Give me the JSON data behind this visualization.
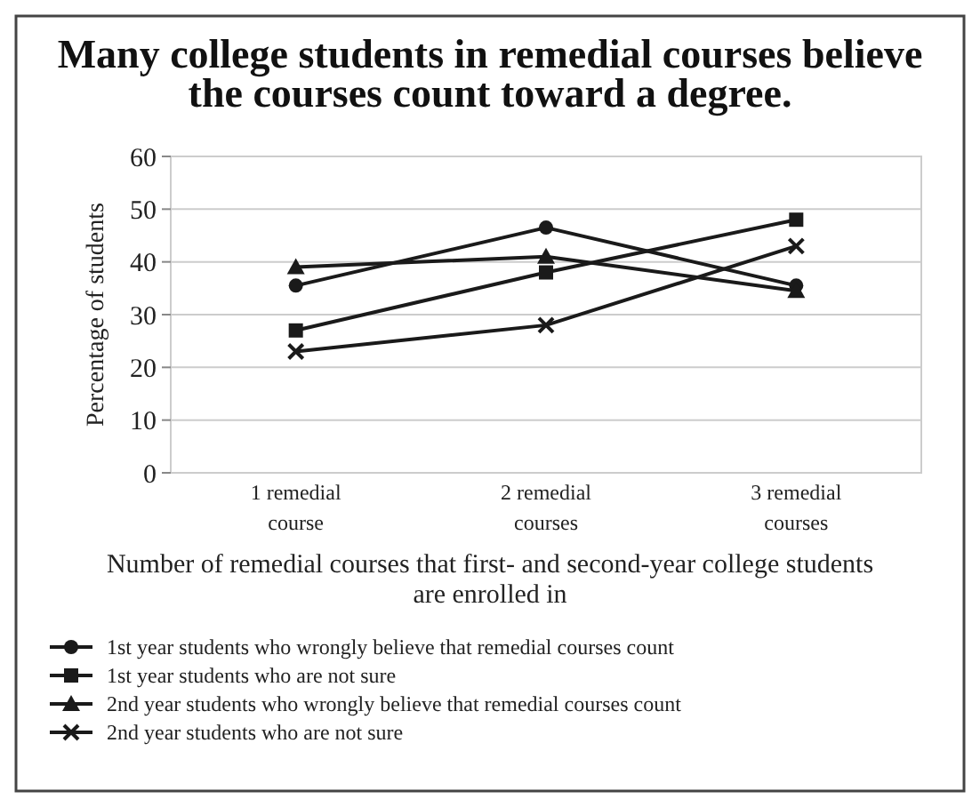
{
  "chart_data": {
    "type": "line",
    "title": "Many college students in remedial courses believe the courses count toward a degree.",
    "xlabel": "Number of remedial courses that first- and second-year college students are enrolled in",
    "ylabel": "Percentage of students",
    "categories": [
      "1 remedial course",
      "2 remedial courses",
      "3 remedial courses"
    ],
    "ylim": [
      0,
      60
    ],
    "yticks": [
      0,
      10,
      20,
      30,
      40,
      50,
      60
    ],
    "grid": "y",
    "legend": "bottom",
    "line_style": "solid",
    "series": [
      {
        "name": "1st year students who wrongly believe that remedial courses count",
        "color": "#1a1a1a",
        "marker": "circle",
        "values": [
          35.5,
          46.5,
          35.5
        ]
      },
      {
        "name": "1st year students who are not sure",
        "color": "#1a1a1a",
        "marker": "square",
        "values": [
          27,
          38,
          48
        ]
      },
      {
        "name": "2nd year students who wrongly believe that remedial courses count",
        "color": "#1a1a1a",
        "marker": "triangle",
        "values": [
          39,
          41,
          34.5
        ]
      },
      {
        "name": "2nd year students who are not sure",
        "color": "#1a1a1a",
        "marker": "cross",
        "values": [
          23,
          28,
          43
        ]
      }
    ]
  }
}
